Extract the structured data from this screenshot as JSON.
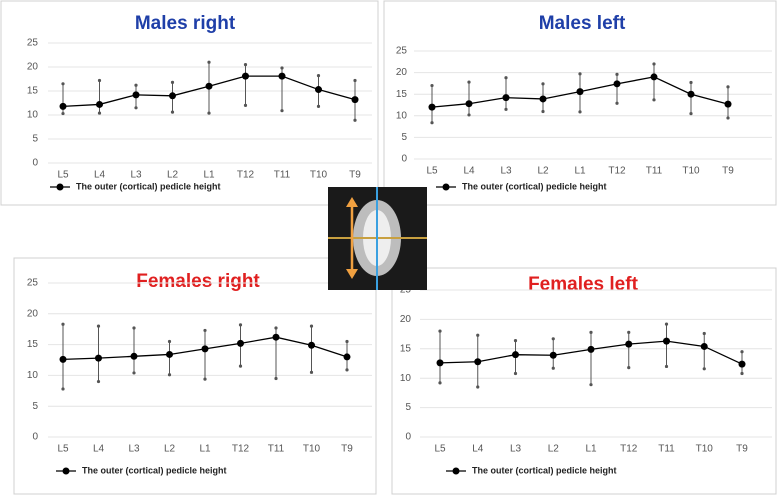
{
  "chart_data": [
    {
      "type": "line",
      "title": "Males right",
      "title_color": "#1f3fa8",
      "categories": [
        "L5",
        "L4",
        "L3",
        "L2",
        "L1",
        "T12",
        "T11",
        "T10",
        "T9"
      ],
      "series": [
        {
          "name": "The outer (cortical) pedicle height",
          "color": "#000000",
          "values": [
            11.8,
            12.2,
            14.2,
            14.0,
            16.0,
            18.1,
            18.1,
            15.3,
            13.2
          ],
          "lower": [
            10.3,
            10.4,
            11.5,
            10.6,
            10.4,
            12.0,
            10.9,
            11.8,
            8.9
          ],
          "upper": [
            16.5,
            17.2,
            16.2,
            16.8,
            21.0,
            20.5,
            19.8,
            18.2,
            17.2
          ]
        }
      ],
      "ylim": [
        0,
        25
      ],
      "yticks": [
        0,
        5,
        10,
        15,
        20,
        25
      ],
      "grid": true
    },
    {
      "type": "line",
      "title": "Males left",
      "title_color": "#1f3fa8",
      "categories": [
        "L5",
        "L4",
        "L3",
        "L2",
        "L1",
        "T12",
        "T11",
        "T10",
        "T9"
      ],
      "series": [
        {
          "name": "The outer (cortical) pedicle height",
          "color": "#000000",
          "values": [
            12.0,
            12.8,
            14.2,
            13.9,
            15.6,
            17.4,
            19.0,
            15.0,
            12.7
          ],
          "lower": [
            8.4,
            10.2,
            11.5,
            11.0,
            10.9,
            12.9,
            13.7,
            10.5,
            9.5
          ],
          "upper": [
            17.0,
            17.8,
            18.8,
            17.4,
            19.7,
            19.6,
            22.0,
            17.7,
            16.7
          ]
        }
      ],
      "ylim": [
        0,
        25
      ],
      "yticks": [
        0,
        5,
        10,
        15,
        20,
        25
      ],
      "grid": true
    },
    {
      "type": "line",
      "title": "Females right",
      "title_color": "#e02020",
      "categories": [
        "L5",
        "L4",
        "L3",
        "L2",
        "L1",
        "T12",
        "T11",
        "T10",
        "T9"
      ],
      "series": [
        {
          "name": "The outer (cortical) pedicle height",
          "color": "#000000",
          "values": [
            12.6,
            12.8,
            13.1,
            13.4,
            14.3,
            15.2,
            16.2,
            14.9,
            13.0
          ],
          "lower": [
            7.8,
            9.0,
            10.4,
            10.1,
            9.4,
            11.5,
            9.5,
            10.5,
            10.9
          ],
          "upper": [
            18.3,
            18.0,
            17.7,
            15.5,
            17.3,
            18.2,
            17.7,
            18.0,
            15.5
          ]
        }
      ],
      "ylim": [
        0,
        25
      ],
      "yticks": [
        0,
        5,
        10,
        15,
        20,
        25
      ],
      "grid": true
    },
    {
      "type": "line",
      "title": "Females left",
      "title_color": "#e02020",
      "categories": [
        "L5",
        "L4",
        "L3",
        "L2",
        "L1",
        "T12",
        "T11",
        "T10",
        "T9"
      ],
      "series": [
        {
          "name": "The outer (cortical) pedicle height",
          "color": "#000000",
          "values": [
            12.6,
            12.8,
            14.0,
            13.9,
            14.9,
            15.8,
            16.3,
            15.4,
            12.4
          ],
          "lower": [
            9.2,
            8.5,
            10.8,
            11.7,
            8.9,
            11.8,
            12.0,
            11.6,
            10.8
          ],
          "upper": [
            18.0,
            17.3,
            16.4,
            16.7,
            17.8,
            17.8,
            19.2,
            17.6,
            14.5
          ]
        }
      ],
      "ylim": [
        0,
        25
      ],
      "yticks": [
        0,
        5,
        10,
        15,
        20,
        25
      ],
      "grid": true
    }
  ]
}
